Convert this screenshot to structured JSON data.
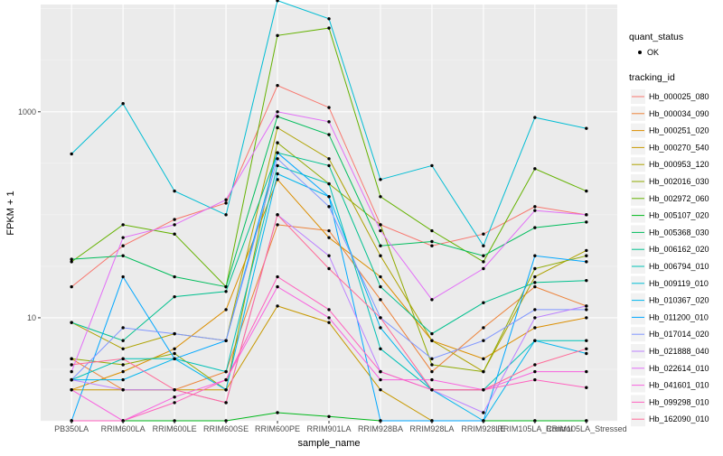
{
  "chart_data": {
    "type": "line",
    "xlabel": "sample_name",
    "ylabel": "FPKM + 1",
    "y_scale": "log10",
    "y_ticks": [
      10,
      1000
    ],
    "ylim": [
      1,
      11000
    ],
    "grid": true,
    "categories": [
      "PB350LA",
      "RRIM600LA",
      "RRIM600LE",
      "RRIM600SE",
      "RRIM600PE",
      "RRIM901LA",
      "RRIM928BA",
      "RRIM928LA",
      "RRIM928LE",
      "RRIM105LA_Control",
      "RRIM105LA_Stressed"
    ],
    "legend": {
      "position": "right",
      "quant_title": "quant_status",
      "quant_label": "OK",
      "tracking_title": "tracking_id"
    },
    "series": [
      {
        "name": "Hb_000025_080",
        "color": "#F8766D",
        "values": [
          20,
          50,
          90,
          130,
          1800,
          1100,
          80,
          50,
          65,
          120,
          100
        ]
      },
      {
        "name": "Hb_000034_090",
        "color": "#EC8239",
        "values": [
          4,
          2,
          2,
          3,
          80,
          70,
          15,
          3,
          8,
          20,
          13
        ]
      },
      {
        "name": "Hb_000251_020",
        "color": "#DB8E00",
        "values": [
          2,
          3,
          5,
          12,
          220,
          60,
          25,
          6,
          4,
          8,
          10
        ]
      },
      {
        "name": "Hb_000270_540",
        "color": "#C79800",
        "values": [
          2,
          2,
          2,
          2,
          13,
          9,
          2,
          1,
          1,
          1,
          1
        ]
      },
      {
        "name": "Hb_000953_120",
        "color": "#AEA200",
        "values": [
          9,
          5,
          7,
          6,
          700,
          350,
          40,
          6,
          3,
          25,
          45
        ]
      },
      {
        "name": "Hb_002016_030",
        "color": "#8FAA00",
        "values": [
          4,
          3.5,
          4.5,
          2,
          500,
          200,
          80,
          3.5,
          3,
          30,
          40
        ]
      },
      {
        "name": "Hb_002972_060",
        "color": "#64B200",
        "values": [
          35,
          80,
          65,
          20,
          5500,
          6500,
          150,
          70,
          35,
          280,
          170
        ]
      },
      {
        "name": "Hb_005107_020",
        "color": "#00B81B",
        "values": [
          1,
          1,
          1,
          1,
          1.2,
          1.1,
          1,
          1,
          1,
          1,
          1
        ]
      },
      {
        "name": "Hb_005368_030",
        "color": "#00BD5C",
        "values": [
          37,
          40,
          25,
          20,
          900,
          600,
          50,
          55,
          40,
          75,
          85
        ]
      },
      {
        "name": "Hb_006162_020",
        "color": "#00C08E",
        "values": [
          9,
          6,
          16,
          18,
          400,
          300,
          20,
          7,
          14,
          22,
          23
        ]
      },
      {
        "name": "Hb_006794_010",
        "color": "#00C1B7",
        "values": [
          2.5,
          4,
          4,
          3,
          300,
          200,
          5,
          2,
          2,
          6,
          6
        ]
      },
      {
        "name": "Hb_009119_010",
        "color": "#00BDD4",
        "values": [
          390,
          1200,
          170,
          100,
          12000,
          8000,
          220,
          300,
          50,
          880,
          690
        ]
      },
      {
        "name": "Hb_010367_020",
        "color": "#00B5EE",
        "values": [
          2.5,
          2.5,
          4,
          2,
          250,
          150,
          8,
          2,
          1,
          6,
          4.5
        ]
      },
      {
        "name": "Hb_011200_010",
        "color": "#00A7FF",
        "values": [
          1,
          25,
          4,
          6,
          400,
          150,
          1,
          1,
          1,
          40,
          35
        ]
      },
      {
        "name": "Hb_017014_020",
        "color": "#7F96FF",
        "values": [
          2.5,
          8,
          7,
          6,
          350,
          120,
          10,
          4,
          6,
          12,
          12
        ]
      },
      {
        "name": "Hb_021888_040",
        "color": "#BC81FF",
        "values": [
          2.5,
          2,
          2,
          1.5,
          100,
          40,
          3,
          2,
          1.2,
          10,
          13
        ]
      },
      {
        "name": "Hb_022614_010",
        "color": "#E26EF7",
        "values": [
          3,
          60,
          80,
          140,
          1000,
          800,
          70,
          15,
          30,
          110,
          100
        ]
      },
      {
        "name": "Hb_041601_010",
        "color": "#F863DF",
        "values": [
          2,
          1,
          1.7,
          2.5,
          20,
          10,
          2.5,
          2.5,
          2,
          3,
          3
        ]
      },
      {
        "name": "Hb_099298_010",
        "color": "#FF62BF",
        "values": [
          1,
          1,
          1.5,
          2.5,
          25,
          12,
          3,
          2,
          2,
          2.5,
          2.1
        ]
      },
      {
        "name": "Hb_162090_010",
        "color": "#FF6A98",
        "values": [
          3.5,
          4,
          2,
          1.5,
          100,
          30,
          10,
          2,
          2,
          3.5,
          5
        ]
      }
    ]
  }
}
